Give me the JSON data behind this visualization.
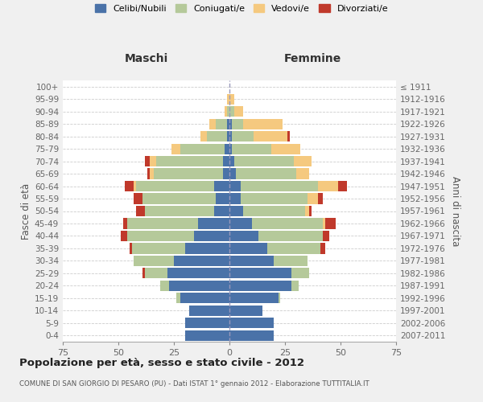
{
  "age_groups": [
    "0-4",
    "5-9",
    "10-14",
    "15-19",
    "20-24",
    "25-29",
    "30-34",
    "35-39",
    "40-44",
    "45-49",
    "50-54",
    "55-59",
    "60-64",
    "65-69",
    "70-74",
    "75-79",
    "80-84",
    "85-89",
    "90-94",
    "95-99",
    "100+"
  ],
  "birth_years": [
    "2007-2011",
    "2002-2006",
    "1997-2001",
    "1992-1996",
    "1987-1991",
    "1982-1986",
    "1977-1981",
    "1972-1976",
    "1967-1971",
    "1962-1966",
    "1957-1961",
    "1952-1956",
    "1947-1951",
    "1942-1946",
    "1937-1941",
    "1932-1936",
    "1927-1931",
    "1922-1926",
    "1917-1921",
    "1912-1916",
    "≤ 1911"
  ],
  "male": {
    "celibi": [
      20,
      20,
      18,
      22,
      27,
      28,
      25,
      20,
      16,
      14,
      7,
      6,
      7,
      3,
      3,
      2,
      1,
      1,
      0,
      0,
      0
    ],
    "coniugati": [
      0,
      0,
      0,
      2,
      4,
      10,
      18,
      24,
      30,
      32,
      31,
      33,
      35,
      31,
      30,
      20,
      9,
      5,
      1,
      0,
      0
    ],
    "vedovi": [
      0,
      0,
      0,
      0,
      0,
      0,
      0,
      0,
      0,
      0,
      0,
      0,
      1,
      2,
      3,
      4,
      3,
      3,
      1,
      1,
      0
    ],
    "divorziati": [
      0,
      0,
      0,
      0,
      0,
      1,
      0,
      1,
      3,
      2,
      4,
      4,
      4,
      1,
      2,
      0,
      0,
      0,
      0,
      0,
      0
    ]
  },
  "female": {
    "nubili": [
      20,
      20,
      15,
      22,
      28,
      28,
      20,
      17,
      13,
      10,
      6,
      5,
      5,
      3,
      2,
      1,
      1,
      1,
      0,
      0,
      0
    ],
    "coniugate": [
      0,
      0,
      0,
      1,
      3,
      8,
      15,
      24,
      29,
      32,
      28,
      30,
      35,
      27,
      27,
      18,
      10,
      5,
      2,
      0,
      0
    ],
    "vedove": [
      0,
      0,
      0,
      0,
      0,
      0,
      0,
      0,
      0,
      1,
      2,
      5,
      9,
      6,
      8,
      13,
      15,
      18,
      4,
      2,
      0
    ],
    "divorziate": [
      0,
      0,
      0,
      0,
      0,
      0,
      0,
      2,
      3,
      5,
      1,
      2,
      4,
      0,
      0,
      0,
      1,
      0,
      0,
      0,
      0
    ]
  },
  "colors": {
    "celibi": "#4a72a8",
    "coniugati": "#b5c99a",
    "vedovi": "#f5c97f",
    "divorziati": "#c0392b"
  },
  "xlim": 75,
  "title": "Popolazione per età, sesso e stato civile - 2012",
  "subtitle": "COMUNE DI SAN GIORGIO DI PESARO (PU) - Dati ISTAT 1° gennaio 2012 - Elaborazione TUTTITALIA.IT",
  "ylabel_left": "Fasce di età",
  "ylabel_right": "Anni di nascita",
  "xlabel_maschi": "Maschi",
  "xlabel_femmine": "Femmine",
  "bg_color": "#f0f0f0",
  "plot_bg": "#ffffff"
}
